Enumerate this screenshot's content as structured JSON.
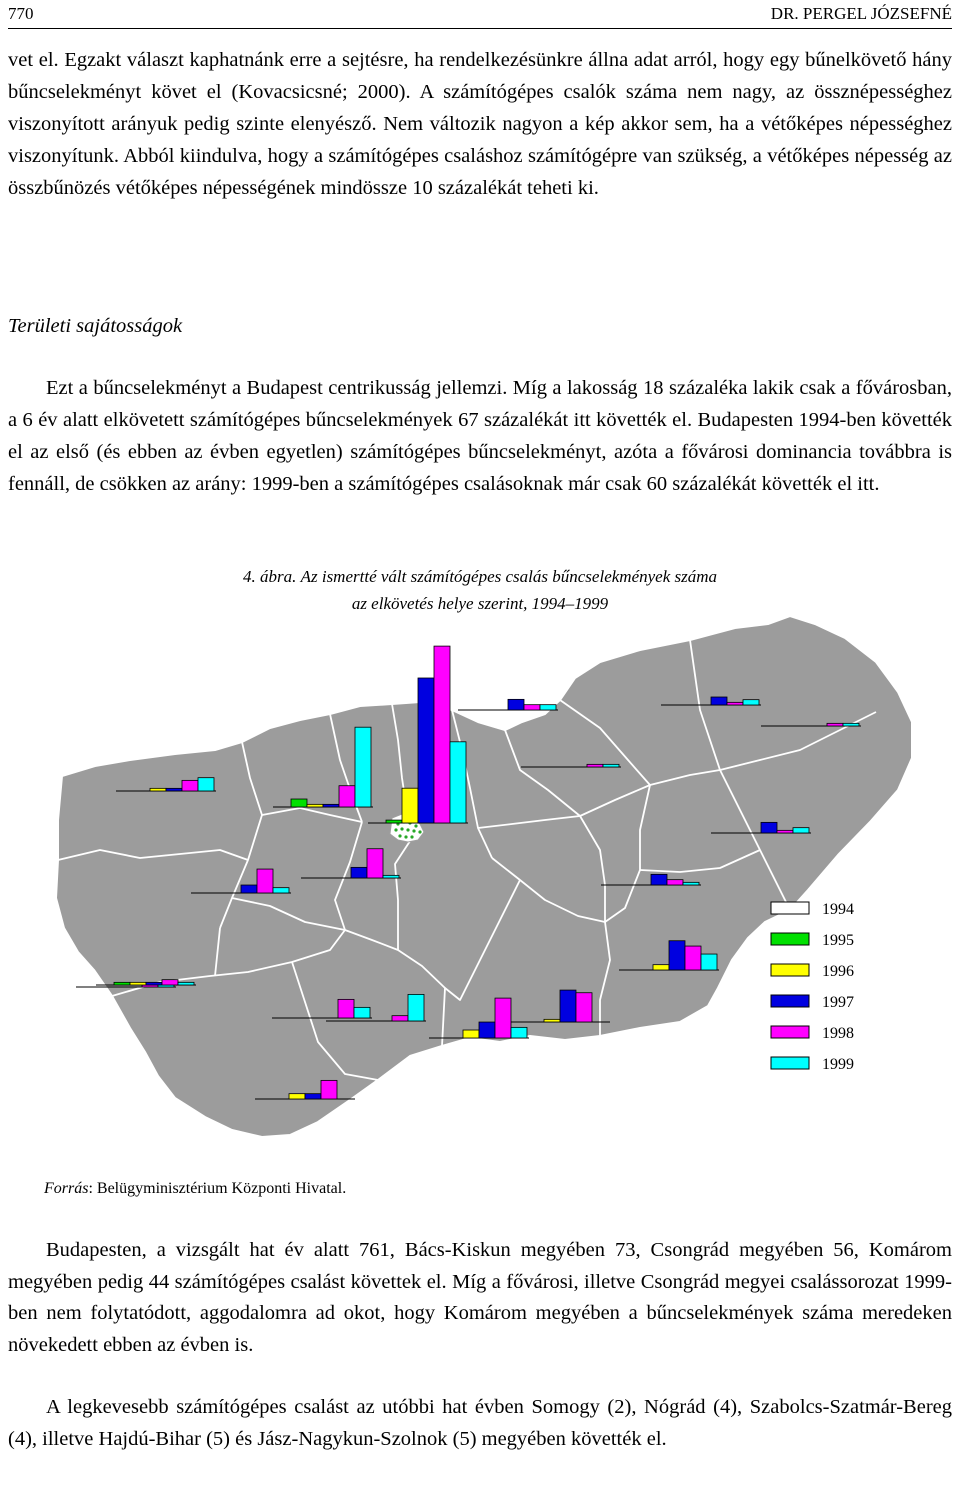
{
  "header": {
    "page_number": "770",
    "author": "DR. PERGEL JÓZSEFNÉ"
  },
  "paragraph1": "vet el. Egzakt választ kaphatnánk erre a sejtésre, ha rendelkezésünkre állna adat arról, hogy egy bűnelkövető hány bűncselekményt követ el (Kovacsicsné; 2000). A számítógépes csalók száma nem nagy, az össznépességhez viszonyított arányuk pedig szinte elenyésző. Nem változik nagyon a kép akkor sem, ha a vétőképes népességhez viszonyítunk. Abból kiindulva, hogy a számítógépes csaláshoz számítógépre van szükség, a vétőképes népesség az összbűnözés vétőképes népességének mindössze 10 százalékát teheti ki.",
  "section_title": "Területi sajátosságok",
  "paragraph2": "Ezt a bűncselekményt a Budapest centrikusság jellemzi. Míg a lakosság 18 százaléka lakik csak a fővárosban, a 6 év alatt elkövetett számítógépes bűncselekmények 67 százalékát itt követték el. Budapesten 1994-ben követték el az első (és ebben az évben egyetlen) számítógépes bűncselekményt, azóta a fővárosi dominancia továbbra is fennáll, de csökken az arány: 1999-ben a számítógépes csalásoknak már csak 60 százalékát követték el itt.",
  "figure": {
    "number": "4. ábra.",
    "caption_line1": "Az ismertté vált számítógépes csalás bűncselekmények száma",
    "caption_line2": "az elkövetés helye szerint, 1994–1999",
    "source_label": "Forrás",
    "source_text": ": Belügyminisztérium Központi Hivatal."
  },
  "chart_data": {
    "type": "bar",
    "title": "Az ismertté vált számítógépes csalás bűncselekmények száma az elkövetés helye szerint, 1994–1999",
    "categories": [
      "1994",
      "1995",
      "1996",
      "1997",
      "1998",
      "1999"
    ],
    "series_colors": [
      "#ffffff",
      "#00e000",
      "#ffff00",
      "#0000e0",
      "#ff00ff",
      "#00ffff"
    ],
    "legend_entries": [
      "1994",
      "1995",
      "1996",
      "1997",
      "1998",
      "1999"
    ],
    "legend_placement": "right",
    "regions": [
      {
        "values": [
          0,
          0,
          1,
          1,
          4,
          5
        ]
      },
      {
        "values": [
          0,
          0,
          0,
          3,
          9,
          2
        ]
      },
      {
        "values": [
          0,
          3,
          1,
          1,
          8,
          30
        ]
      },
      {
        "values": [
          0,
          1,
          12,
          50,
          61,
          28
        ]
      },
      {
        "values": [
          0,
          0,
          0,
          4,
          2,
          2
        ]
      },
      {
        "values": [
          0,
          0,
          0,
          3,
          1,
          2
        ]
      },
      {
        "values": [
          0,
          0,
          0,
          0,
          1,
          1
        ]
      },
      {
        "values": [
          0,
          0,
          0,
          0,
          1,
          1
        ]
      },
      {
        "values": [
          0,
          0,
          0,
          4,
          1,
          2
        ]
      },
      {
        "values": [
          0,
          0,
          0,
          4,
          11,
          1
        ]
      },
      {
        "values": [
          0,
          0,
          0,
          4,
          2,
          1
        ]
      },
      {
        "values": [
          0,
          0,
          0,
          0,
          1,
          1
        ]
      },
      {
        "values": [
          0,
          1,
          1,
          1,
          2,
          1
        ]
      },
      {
        "values": [
          0,
          0,
          0,
          0,
          2,
          10
        ]
      },
      {
        "values": [
          0,
          0,
          0,
          0,
          7,
          4
        ]
      },
      {
        "values": [
          0,
          0,
          2,
          11,
          9,
          6
        ]
      },
      {
        "values": [
          0,
          0,
          1,
          12,
          11,
          0
        ]
      },
      {
        "values": [
          0,
          0,
          3,
          6,
          15,
          4
        ]
      },
      {
        "values": [
          0,
          0,
          2,
          2,
          7,
          0
        ]
      }
    ]
  },
  "paragraph3": "Budapesten, a vizsgált hat év alatt 761, Bács-Kiskun megyében 73, Csongrád megyében 56, Komárom megyében pedig 44 számítógépes csalást követtek el. Míg a fővárosi, illetve Csongrád megyei csalássorozat 1999-ben nem folytatódott, aggodalomra ad okot, hogy Komárom megyében a bűncselekmények száma meredeken növekedett ebben az évben is.",
  "paragraph4": "A legkevesebb számítógépes csalást az utóbbi hat évben Somogy (2), Nógrád (4), Szabolcs-Szatmár-Bereg (4), illetve Hajdú-Bihar (5) és Jász-Nagykun-Szolnok (5) megyében követték el."
}
